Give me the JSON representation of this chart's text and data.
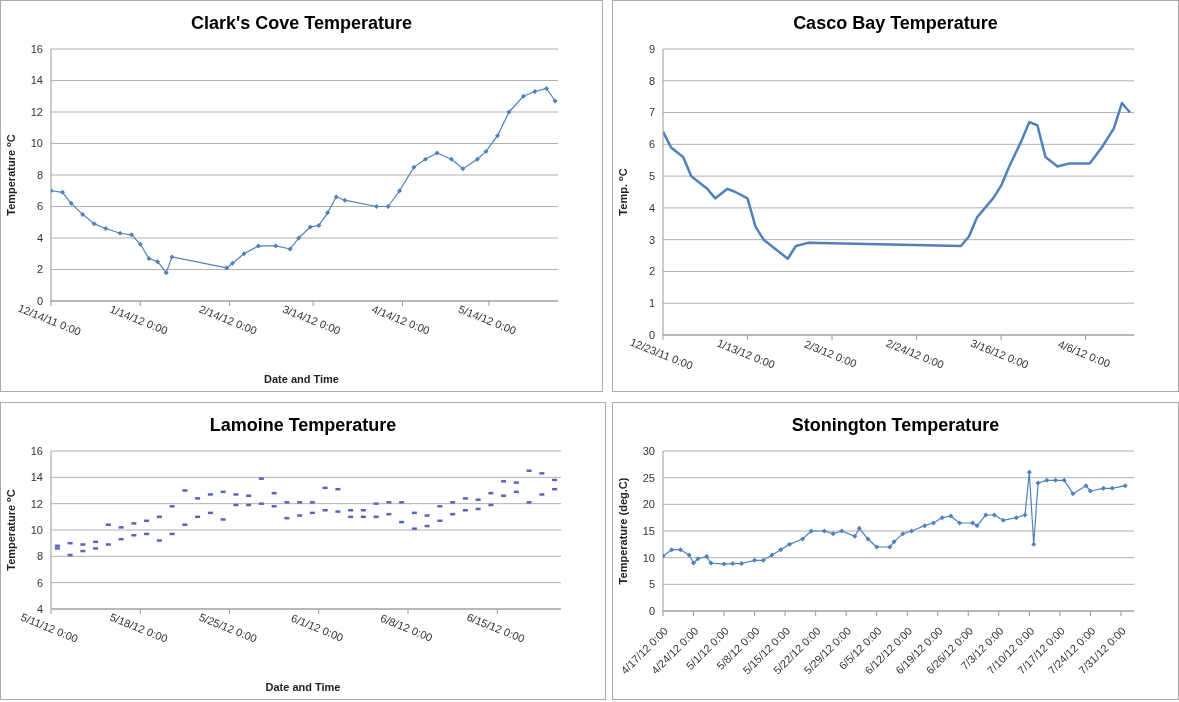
{
  "chart_data": [
    {
      "type": "line",
      "title": "Clark's Cove Temperature",
      "xlabel": "Date and Time",
      "ylabel": "Temperature $^{o}$C",
      "marker": "diamond",
      "grid": "y",
      "x": [
        "2011-12-14",
        "2011-12-18",
        "2011-12-21",
        "2011-12-25",
        "2011-12-29",
        "2012-01-02",
        "2012-01-07",
        "2012-01-11",
        "2012-01-14",
        "2012-01-17",
        "2012-01-20",
        "2012-01-23",
        "2012-01-25",
        "2012-02-13",
        "2012-02-15",
        "2012-02-19",
        "2012-02-24",
        "2012-03-01",
        "2012-03-06",
        "2012-03-09",
        "2012-03-13",
        "2012-03-16",
        "2012-03-19",
        "2012-03-22",
        "2012-03-25",
        "2012-04-05",
        "2012-04-09",
        "2012-04-13",
        "2012-04-18",
        "2012-04-22",
        "2012-04-26",
        "2012-05-01",
        "2012-05-05",
        "2012-05-10",
        "2012-05-13",
        "2012-05-17",
        "2012-05-21",
        "2012-05-26",
        "2012-05-30",
        "2012-06-03",
        "2012-06-06"
      ],
      "series": [
        {
          "color": "#4f81bd",
          "values": [
            7.0,
            6.9,
            6.2,
            5.5,
            4.9,
            4.6,
            4.3,
            4.2,
            3.6,
            2.7,
            2.5,
            1.8,
            2.8,
            2.1,
            2.4,
            3.0,
            3.5,
            3.5,
            3.3,
            4.0,
            4.7,
            4.8,
            5.6,
            6.6,
            6.4,
            6.0,
            6.0,
            7.0,
            8.5,
            9.0,
            9.4,
            9.0,
            8.4,
            9.0,
            9.5,
            10.5,
            12.0,
            13.0,
            13.3,
            13.5,
            12.7
          ]
        }
      ],
      "xlim": [
        "2011-12-14",
        "2012-06-07"
      ],
      "ylim": [
        0,
        16
      ],
      "yticks": [
        0,
        2,
        4,
        6,
        8,
        10,
        12,
        14,
        16
      ],
      "xticks": [
        {
          "value": "2011-12-14",
          "label": "12/14/11 0:00"
        },
        {
          "value": "2012-01-14",
          "label": "1/14/12 0:00"
        },
        {
          "value": "2012-02-14",
          "label": "2/14/12 0:00"
        },
        {
          "value": "2012-03-14",
          "label": "3/14/12 0:00"
        },
        {
          "value": "2012-04-14",
          "label": "4/14/12 0:00"
        },
        {
          "value": "2012-05-14",
          "label": "5/14/12 0:00"
        }
      ]
    },
    {
      "type": "line",
      "title": "Casco Bay Temperature",
      "ylabel": "Temp. $^{o}$C",
      "marker": "none",
      "grid": "y",
      "x": [
        "2011-12-23",
        "2011-12-25",
        "2011-12-28",
        "2011-12-30",
        "2012-01-01",
        "2012-01-03",
        "2012-01-05",
        "2012-01-08",
        "2012-01-10",
        "2012-01-13",
        "2012-01-15",
        "2012-01-17",
        "2012-01-20",
        "2012-01-23",
        "2012-01-25",
        "2012-01-28",
        "2012-03-06",
        "2012-03-08",
        "2012-03-10",
        "2012-03-12",
        "2012-03-14",
        "2012-03-16",
        "2012-03-18",
        "2012-03-21",
        "2012-03-23",
        "2012-03-25",
        "2012-03-27",
        "2012-03-30",
        "2012-04-02",
        "2012-04-04",
        "2012-04-07",
        "2012-04-10",
        "2012-04-13",
        "2012-04-15",
        "2012-04-17"
      ],
      "series": [
        {
          "color": "#4f81bd",
          "values": [
            6.4,
            5.9,
            5.6,
            5.0,
            4.8,
            4.6,
            4.3,
            4.6,
            4.5,
            4.3,
            3.4,
            3.0,
            2.7,
            2.4,
            2.8,
            2.9,
            2.8,
            3.1,
            3.7,
            4.0,
            4.3,
            4.7,
            5.3,
            6.1,
            6.7,
            6.6,
            5.6,
            5.3,
            5.4,
            5.4,
            5.4,
            5.9,
            6.5,
            7.3,
            7.0
          ]
        }
      ],
      "xlim": [
        "2011-12-23",
        "2012-04-18"
      ],
      "ylim": [
        0,
        9
      ],
      "yticks": [
        0,
        1,
        2,
        3,
        4,
        5,
        6,
        7,
        8,
        9
      ],
      "xticks": [
        {
          "value": "2011-12-23",
          "label": "12/23/11 0:00"
        },
        {
          "value": "2012-01-13",
          "label": "1/13/12 0:00"
        },
        {
          "value": "2012-02-03",
          "label": "2/3/12 0:00"
        },
        {
          "value": "2012-02-24",
          "label": "2/24/12 0:00"
        },
        {
          "value": "2012-03-16",
          "label": "3/16/12 0:00"
        },
        {
          "value": "2012-04-06",
          "label": "4/6/12 0:00"
        }
      ]
    },
    {
      "type": "scatter",
      "title": "Lamoine Temperature",
      "xlabel": "Date and Time",
      "ylabel": "Temperature $^{o}$C",
      "marker": "square",
      "grid": "y",
      "x": [
        "--05-11T12:00",
        "--05-11T12:00",
        "--05-12T12:00",
        "--05-12T12:00",
        "--05-13T12:00",
        "--05-13T12:00",
        "--05-14T12:00",
        "--05-14T12:00",
        "--05-15T12:00",
        "--05-15T12:00",
        "--05-16T12:00",
        "--05-16T12:00",
        "--05-17T12:00",
        "--05-17T12:00",
        "--05-18T12:00",
        "--05-18T12:00",
        "--05-19T12:00",
        "--05-19T12:00",
        "--05-20T12:00",
        "--05-20T12:00",
        "--05-21T12:00",
        "--05-21T12:00",
        "--05-22T12:00",
        "--05-22T12:00",
        "--05-23T12:00",
        "--05-23T12:00",
        "--05-24T12:00",
        "--05-24T12:00",
        "--05-25T12:00",
        "--05-25T12:00",
        "--05-26T12:00",
        "--05-26T12:00",
        "--05-27T12:00",
        "--05-27T12:00",
        "--05-28T12:00",
        "--05-28T12:00",
        "--05-29T12:00",
        "--05-29T12:00",
        "--05-30T12:00",
        "--05-30T12:00",
        "--05-31T12:00",
        "--05-31T12:00",
        "--06-01T12:00",
        "--06-01T12:00",
        "--06-02T12:00",
        "--06-02T12:00",
        "--06-03T12:00",
        "--06-03T12:00",
        "--06-04T12:00",
        "--06-04T12:00",
        "--06-05T12:00",
        "--06-05T12:00",
        "--06-06T12:00",
        "--06-06T12:00",
        "--06-07T12:00",
        "--06-07T12:00",
        "--06-08T12:00",
        "--06-08T12:00",
        "--06-09T12:00",
        "--06-09T12:00",
        "--06-10T12:00",
        "--06-10T12:00",
        "--06-11T12:00",
        "--06-11T12:00",
        "--06-12T12:00",
        "--06-12T12:00",
        "--06-13T12:00",
        "--06-13T12:00",
        "--06-14T12:00",
        "--06-14T12:00",
        "--06-15T12:00",
        "--06-15T12:00",
        "--06-16T12:00",
        "--06-16T12:00",
        "--06-17T12:00",
        "--06-17T12:00",
        "--06-18T12:00",
        "--06-18T12:00",
        "--06-19T12:00",
        "--06-19T12:00"
      ],
      "series": [
        {
          "color": "#5b63b7",
          "values": [
            8.6,
            8.8,
            8.1,
            9.0,
            8.4,
            8.9,
            8.6,
            9.1,
            8.9,
            10.4,
            9.3,
            10.2,
            9.6,
            10.5,
            9.7,
            10.7,
            9.2,
            11.0,
            9.7,
            11.8,
            10.4,
            13.0,
            11.0,
            12.4,
            11.3,
            12.7,
            10.8,
            12.9,
            11.9,
            12.7,
            11.9,
            12.6,
            12.0,
            13.9,
            11.8,
            12.8,
            10.9,
            12.1,
            11.1,
            12.1,
            11.3,
            12.1,
            11.5,
            13.2,
            11.4,
            13.1,
            11.0,
            11.5,
            11.0,
            11.5,
            11.0,
            12.0,
            11.2,
            12.1,
            10.6,
            12.1,
            10.1,
            11.3,
            10.3,
            11.1,
            10.7,
            11.8,
            11.2,
            12.1,
            11.5,
            12.4,
            11.6,
            12.3,
            11.9,
            12.8,
            12.6,
            13.7,
            12.9,
            13.6,
            12.1,
            14.5,
            12.7,
            14.3,
            13.1,
            13.8
          ]
        }
      ],
      "xlim": [
        "--05-11",
        "--06-20"
      ],
      "ylim": [
        4,
        16
      ],
      "yticks": [
        4,
        6,
        8,
        10,
        12,
        14,
        16
      ],
      "xticks": [
        {
          "value": "--05-11",
          "label": "5/11/12 0:00"
        },
        {
          "value": "--05-18",
          "label": "5/18/12 0:00"
        },
        {
          "value": "--05-25",
          "label": "5/25/12 0:00"
        },
        {
          "value": "--06-01",
          "label": "6/1/12 0:00"
        },
        {
          "value": "--06-08",
          "label": "6/8/12 0:00"
        },
        {
          "value": "--06-15",
          "label": "6/15/12 0:00"
        }
      ]
    },
    {
      "type": "line",
      "title": "Stonington Temperature",
      "ylabel": "Temperature (deg.C)",
      "marker": "diamond",
      "grid": "y",
      "x": [
        "--04-17",
        "--04-19",
        "--04-21",
        "--04-23",
        "--04-24",
        "--04-25",
        "--04-27",
        "--04-28",
        "--05-01",
        "--05-03",
        "--05-05",
        "--05-08",
        "--05-10",
        "--05-12",
        "--05-14",
        "--05-16",
        "--05-19",
        "--05-21",
        "--05-24",
        "--05-26",
        "--05-28",
        "--05-31",
        "--06-01",
        "--06-03",
        "--06-05",
        "--06-08",
        "--06-09",
        "--06-11",
        "--06-13",
        "--06-16",
        "--06-18",
        "--06-20",
        "--06-22",
        "--06-24",
        "--06-27",
        "--06-28",
        "--06-30",
        "--07-02",
        "--07-04",
        "--07-07",
        "--07-09",
        "--07-10",
        "--07-11",
        "--07-12",
        "--07-14",
        "--07-16",
        "--07-18",
        "--07-20",
        "--07-23",
        "--07-24",
        "--07-27",
        "--07-29",
        "--08-01"
      ],
      "series": [
        {
          "color": "#4f81bd",
          "values": [
            10.3,
            11.5,
            11.5,
            10.5,
            9.0,
            9.8,
            10.2,
            9.0,
            8.8,
            8.9,
            8.9,
            9.5,
            9.5,
            10.5,
            11.5,
            12.5,
            13.5,
            15.0,
            15.0,
            14.5,
            15.0,
            14.0,
            15.5,
            13.5,
            12.0,
            12.0,
            13.0,
            14.5,
            15.0,
            16.0,
            16.5,
            17.5,
            17.8,
            16.5,
            16.5,
            16.0,
            18.0,
            18.0,
            17.0,
            17.5,
            18.0,
            26.0,
            12.5,
            24.0,
            24.5,
            24.5,
            24.5,
            22.0,
            23.5,
            22.5,
            23.0,
            23.0,
            23.5
          ]
        }
      ],
      "xlim": [
        "--04-17",
        "--08-03"
      ],
      "ylim": [
        0,
        30
      ],
      "yticks": [
        0,
        5,
        10,
        15,
        20,
        25,
        30
      ],
      "xticks": [
        {
          "value": "--04-17",
          "label": "4/17/12 0:00"
        },
        {
          "value": "--04-24",
          "label": "4/24/12 0:00"
        },
        {
          "value": "--05-01",
          "label": "5/1/12 0:00"
        },
        {
          "value": "--05-08",
          "label": "5/8/12 0:00"
        },
        {
          "value": "--05-15",
          "label": "5/15/12 0:00"
        },
        {
          "value": "--05-22",
          "label": "5/22/12 0:00"
        },
        {
          "value": "--05-29",
          "label": "5/29/12 0:00"
        },
        {
          "value": "--06-05",
          "label": "6/5/12 0:00"
        },
        {
          "value": "--06-12",
          "label": "6/12/12 0:00"
        },
        {
          "value": "--06-19",
          "label": "6/19/12 0:00"
        },
        {
          "value": "--06-26",
          "label": "6/26/12 0:00"
        },
        {
          "value": "--07-03",
          "label": "7/3/12 0:00"
        },
        {
          "value": "--07-10",
          "label": "7/10/12 0:00"
        },
        {
          "value": "--07-17",
          "label": "7/17/12 0:00"
        },
        {
          "value": "--07-24",
          "label": "7/24/12 0:00"
        },
        {
          "value": "--07-31",
          "label": "7/31/12 0:00"
        }
      ]
    }
  ]
}
